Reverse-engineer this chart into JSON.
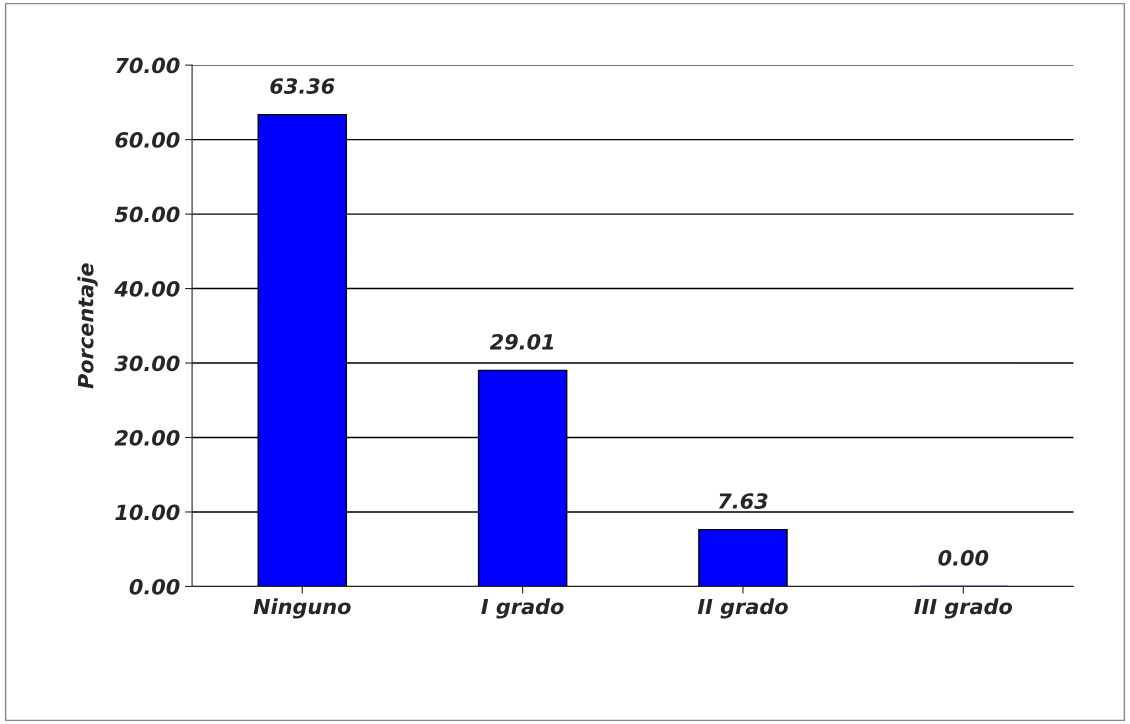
{
  "chart_data": {
    "type": "bar",
    "categories": [
      "Ninguno",
      "I grado",
      "II grado",
      "III grado"
    ],
    "values": [
      63.36,
      29.01,
      7.63,
      0.0
    ],
    "value_labels": [
      "63.36",
      "29.01",
      "7.63",
      "0.00"
    ],
    "color": "#0000ff",
    "ylabel": "Porcentaje",
    "ylim": [
      0,
      70
    ],
    "yticks": [
      {
        "value": 0,
        "label": "0.00"
      },
      {
        "value": 10,
        "label": "10.00"
      },
      {
        "value": 20,
        "label": "20.00"
      },
      {
        "value": 30,
        "label": "30.00"
      },
      {
        "value": 40,
        "label": "40.00"
      },
      {
        "value": 50,
        "label": "50.00"
      },
      {
        "value": 60,
        "label": "60.00"
      },
      {
        "value": 70,
        "label": "70.00"
      }
    ],
    "grid": "y"
  }
}
